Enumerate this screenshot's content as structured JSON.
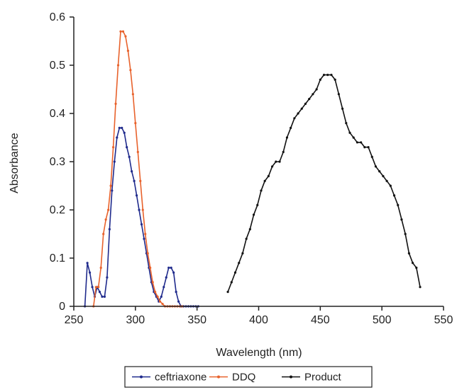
{
  "chart_data": {
    "type": "line",
    "title": "",
    "xlabel": "Wavelength (nm)",
    "ylabel": "Absorbance",
    "xlim": [
      250,
      550
    ],
    "ylim": [
      0,
      0.6
    ],
    "xticks": [
      250,
      300,
      350,
      400,
      450,
      500,
      550
    ],
    "yticks": [
      0,
      0.1,
      0.2,
      0.3,
      0.4,
      0.5,
      0.6
    ],
    "ytick_labels": [
      "0",
      "0.1",
      "0.2",
      "0.3",
      "0.4",
      "0.5",
      "0.6"
    ],
    "grid": false,
    "legend_position": "bottom",
    "series": [
      {
        "name": "ceftriaxone",
        "color": "#1f2a8c",
        "x": [
          259,
          261,
          263,
          265,
          267,
          269,
          271,
          273,
          275,
          277,
          279,
          281,
          283,
          285,
          287,
          289,
          291,
          293,
          295,
          297,
          299,
          301,
          303,
          305,
          307,
          309,
          311,
          313,
          315,
          317,
          319,
          321,
          323,
          325,
          327,
          329,
          331,
          333,
          335,
          337,
          339,
          341,
          343,
          345,
          347,
          349,
          351
        ],
        "y": [
          0.0,
          0.09,
          0.07,
          0.04,
          0.02,
          0.04,
          0.03,
          0.02,
          0.02,
          0.06,
          0.16,
          0.24,
          0.3,
          0.35,
          0.37,
          0.37,
          0.36,
          0.33,
          0.31,
          0.28,
          0.26,
          0.23,
          0.2,
          0.17,
          0.14,
          0.11,
          0.08,
          0.05,
          0.03,
          0.02,
          0.01,
          0.02,
          0.04,
          0.06,
          0.08,
          0.08,
          0.07,
          0.03,
          0.01,
          0.0,
          0.0,
          0.0,
          0.0,
          0.0,
          0.0,
          0.0,
          0.0
        ]
      },
      {
        "name": "DDQ",
        "color": "#e8622c",
        "x": [
          266,
          268,
          270,
          272,
          274,
          276,
          278,
          280,
          282,
          284,
          286,
          288,
          290,
          292,
          294,
          296,
          298,
          300,
          302,
          304,
          306,
          308,
          310,
          312,
          314,
          316,
          318,
          320,
          322,
          324,
          326,
          328,
          330,
          332,
          334,
          336,
          338
        ],
        "y": [
          0.0,
          0.04,
          0.04,
          0.08,
          0.15,
          0.18,
          0.2,
          0.25,
          0.33,
          0.42,
          0.5,
          0.57,
          0.57,
          0.56,
          0.53,
          0.49,
          0.44,
          0.38,
          0.32,
          0.26,
          0.2,
          0.15,
          0.11,
          0.08,
          0.05,
          0.03,
          0.02,
          0.01,
          0.005,
          0.0,
          0.0,
          0.0,
          0.0,
          0.0,
          0.0,
          0.0,
          0.0
        ]
      },
      {
        "name": "Product",
        "color": "#111111",
        "x": [
          375,
          378,
          381,
          384,
          387,
          390,
          393,
          396,
          399,
          402,
          405,
          408,
          411,
          414,
          417,
          420,
          423,
          426,
          429,
          432,
          435,
          438,
          441,
          444,
          447,
          450,
          453,
          456,
          459,
          462,
          465,
          468,
          471,
          474,
          477,
          480,
          483,
          486,
          489,
          492,
          495,
          498,
          501,
          504,
          507,
          510,
          513,
          516,
          519,
          522,
          525,
          528,
          531
        ],
        "y": [
          0.03,
          0.05,
          0.07,
          0.09,
          0.11,
          0.14,
          0.16,
          0.19,
          0.21,
          0.24,
          0.26,
          0.27,
          0.29,
          0.3,
          0.3,
          0.32,
          0.35,
          0.37,
          0.39,
          0.4,
          0.41,
          0.42,
          0.43,
          0.44,
          0.45,
          0.47,
          0.48,
          0.48,
          0.48,
          0.47,
          0.44,
          0.41,
          0.38,
          0.36,
          0.35,
          0.34,
          0.34,
          0.33,
          0.33,
          0.31,
          0.29,
          0.28,
          0.27,
          0.26,
          0.25,
          0.23,
          0.21,
          0.18,
          0.15,
          0.11,
          0.09,
          0.08,
          0.04
        ]
      }
    ]
  }
}
